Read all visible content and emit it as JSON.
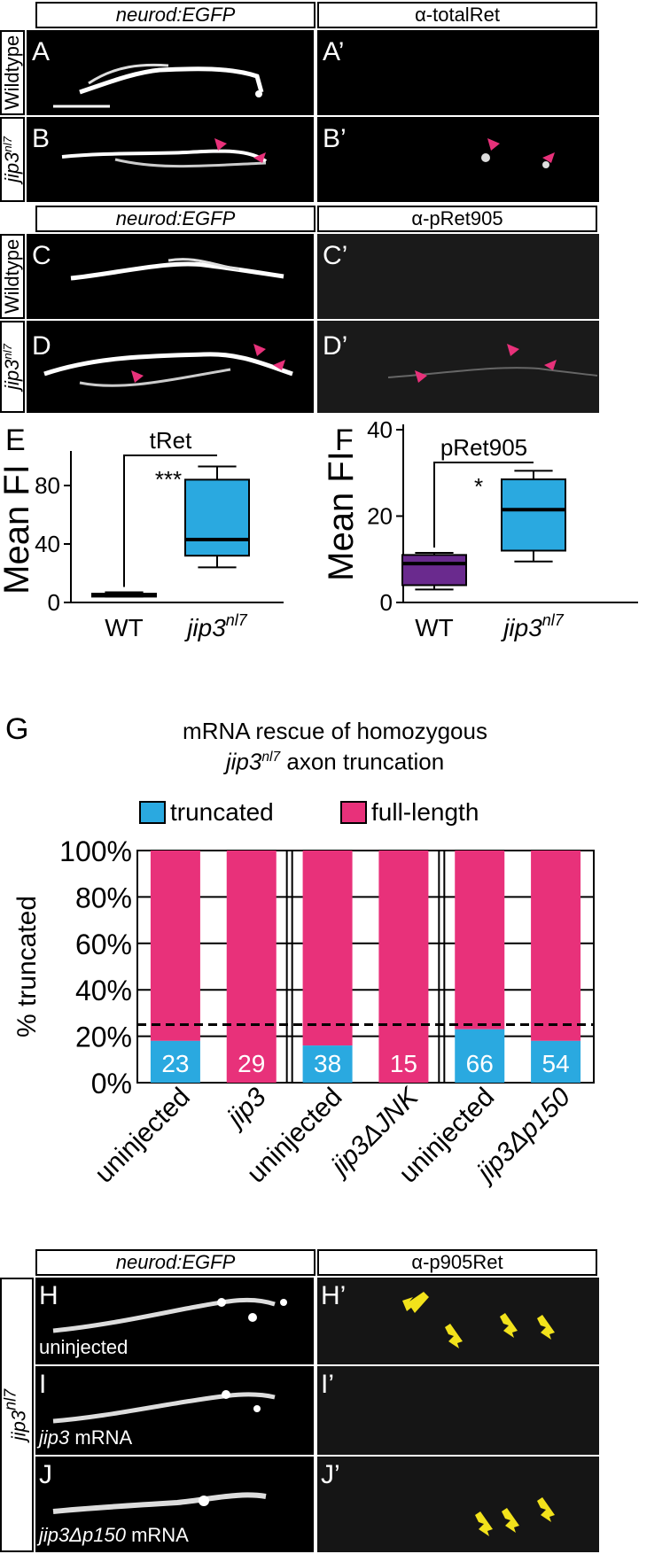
{
  "colors": {
    "wt": "#6a2a8e",
    "mutant": "#2aa9e0",
    "truncated": "#2aa9e0",
    "full_length": "#e8317a",
    "arrowhead": "#e8317a",
    "arrow": "#f2e21b"
  },
  "row_labels": {
    "wildtype": "Wildtype",
    "mutant": "jip3",
    "mutant_sup": "nl7"
  },
  "block1": {
    "left_header": "neurod:EGFP",
    "right_header": "α-totalRet",
    "panels": [
      "A",
      "A’",
      "B",
      "B’"
    ]
  },
  "block2": {
    "left_header": "neurod:EGFP",
    "right_header": "α-pRet905",
    "panels": [
      "C",
      "C’",
      "D",
      "D’"
    ]
  },
  "block3": {
    "left_header": "neurod:EGFP",
    "right_header": "α-p905Ret",
    "panels": [
      "H",
      "H’",
      "I",
      "I’",
      "J",
      "J’"
    ],
    "captions": {
      "H": "uninjected",
      "I_italic": "jip3",
      "I_rest": " mRNA",
      "J_italic": "jip3Δp150",
      "J_rest": " mRNA"
    }
  },
  "panel_E": {
    "letter": "E",
    "title": "tRet",
    "sig": "***",
    "ylabel": "Mean FI",
    "ticks": [
      "0",
      "40",
      "80"
    ],
    "xticks": [
      "WT",
      "jip3"
    ],
    "xtick_sup": "nl7"
  },
  "panel_F": {
    "letter": "F",
    "title": "pRet905",
    "sig": "*",
    "ylabel": "Mean FI",
    "ticks": [
      "0",
      "20",
      "40"
    ],
    "xticks": [
      "WT",
      "jip3"
    ],
    "xtick_sup": "nl7"
  },
  "panel_G": {
    "letter": "G",
    "title_line1": "mRNA rescue of homozygous",
    "title_line2_italic": "jip3",
    "title_line2_sup": "nl7",
    "title_line2_rest": " axon truncation",
    "legend": [
      "truncated",
      "full-length"
    ],
    "ylabel": "% truncated",
    "yticks": [
      "0%",
      "20%",
      "40%",
      "60%",
      "80%",
      "100%"
    ]
  },
  "chart_data": [
    {
      "type": "box",
      "title": "tRet",
      "ylabel": "Mean FI",
      "ylim": [
        0,
        100
      ],
      "categories": [
        "WT",
        "jip3nl7"
      ],
      "boxes": [
        {
          "name": "WT",
          "min": 4,
          "q1": 4,
          "median": 5,
          "q3": 6,
          "max": 7
        },
        {
          "name": "jip3nl7",
          "min": 24,
          "q1": 32,
          "median": 43,
          "q3": 84,
          "max": 93
        }
      ],
      "annotation": "***"
    },
    {
      "type": "box",
      "title": "pRet905",
      "ylabel": "Mean FI",
      "ylim": [
        0,
        40
      ],
      "categories": [
        "WT",
        "jip3nl7"
      ],
      "boxes": [
        {
          "name": "WT",
          "min": 3,
          "q1": 4,
          "median": 9,
          "q3": 11,
          "max": 11.5
        },
        {
          "name": "jip3nl7",
          "min": 9.5,
          "q1": 12,
          "median": 21.5,
          "q3": 28.5,
          "max": 30.5
        }
      ],
      "annotation": "*"
    },
    {
      "type": "bar",
      "stacked": true,
      "ylabel": "% truncated",
      "ylim": [
        0,
        100
      ],
      "categories": [
        "uninjected",
        "jip3",
        "uninjected",
        "jip3ΔJNK",
        "uninjected",
        "jip3Δp150"
      ],
      "series": [
        {
          "name": "truncated",
          "values": [
            18,
            0,
            16,
            0,
            23,
            18
          ]
        },
        {
          "name": "full-length",
          "values": [
            82,
            100,
            84,
            100,
            77,
            82
          ]
        }
      ],
      "n_labels": [
        "23",
        "29",
        "38",
        "15",
        "66",
        "54"
      ],
      "dashed_line": 25
    }
  ]
}
